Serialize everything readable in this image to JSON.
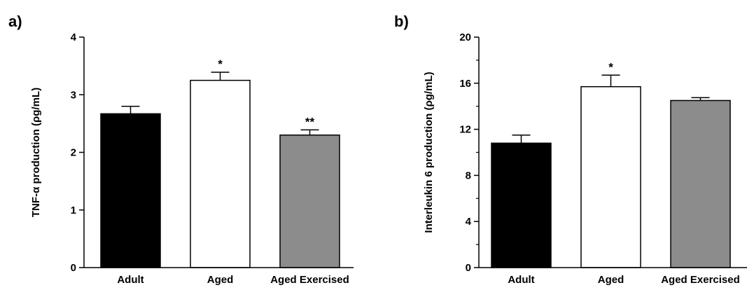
{
  "chart_data": [
    {
      "type": "bar",
      "panel_label": "a)",
      "title": "",
      "xlabel": "",
      "ylabel": "TNF-α production (ρg/mL)",
      "ylim": [
        0,
        4
      ],
      "yticks": [
        0,
        1,
        2,
        3,
        4
      ],
      "minor_ticks": false,
      "categories": [
        "Adult",
        "Aged",
        "Aged Exercised"
      ],
      "values": [
        2.67,
        3.25,
        2.3
      ],
      "errors": [
        0.13,
        0.14,
        0.09
      ],
      "significance": [
        "",
        "*",
        "**"
      ],
      "colors": [
        "#000000",
        "#ffffff",
        "#8c8c8c"
      ],
      "grid": false,
      "legend": "none"
    },
    {
      "type": "bar",
      "panel_label": "b)",
      "title": "",
      "xlabel": "",
      "ylabel": "Interleukin 6 production (ρg/mL)",
      "ylim": [
        0,
        20
      ],
      "yticks": [
        0,
        4,
        8,
        12,
        16,
        20
      ],
      "minor_ticks": true,
      "categories": [
        "Adult",
        "Aged",
        "Aged Exercised"
      ],
      "values": [
        10.8,
        15.7,
        14.5
      ],
      "errors": [
        0.7,
        1.0,
        0.25
      ],
      "significance": [
        "",
        "*",
        ""
      ],
      "colors": [
        "#000000",
        "#ffffff",
        "#8c8c8c"
      ],
      "grid": false,
      "legend": "none"
    }
  ]
}
